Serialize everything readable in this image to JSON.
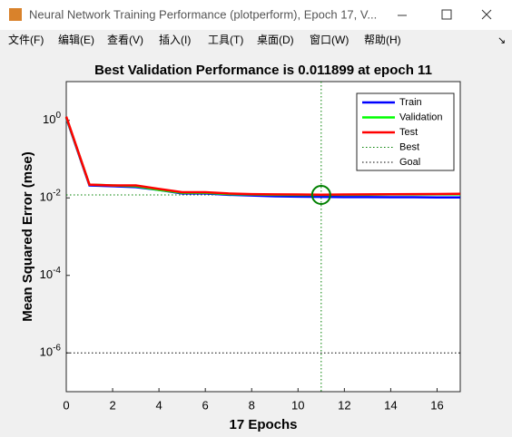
{
  "window": {
    "title": "Neural Network Training Performance (plotperform), Epoch 17, V...",
    "menu": [
      "文件(F)",
      "编辑(E)",
      "查看(V)",
      "插入(I)",
      "工具(T)",
      "桌面(D)",
      "窗口(W)",
      "帮助(H)"
    ]
  },
  "chart_data": {
    "type": "line",
    "title": "Best Validation Performance is 0.011899 at epoch 11",
    "x_label": "17 Epochs",
    "y_label": "Mean Squared Error  (mse)",
    "x": [
      0,
      1,
      2,
      3,
      4,
      5,
      6,
      7,
      8,
      9,
      10,
      11,
      12,
      13,
      14,
      15,
      16,
      17
    ],
    "series": [
      {
        "name": "Train",
        "color": "#0000ff",
        "values": [
          1.15,
          0.021,
          0.02,
          0.019,
          0.016,
          0.013,
          0.013,
          0.012,
          0.0115,
          0.011,
          0.0108,
          0.0106,
          0.0105,
          0.0105,
          0.0104,
          0.0104,
          0.0103,
          0.0103
        ]
      },
      {
        "name": "Validation",
        "color": "#00ff00",
        "values": [
          1.2,
          0.022,
          0.021,
          0.02,
          0.016,
          0.0135,
          0.0135,
          0.0125,
          0.0122,
          0.012,
          0.0119,
          0.011899,
          0.012,
          0.0121,
          0.0122,
          0.0122,
          0.0123,
          0.0123
        ]
      },
      {
        "name": "Test",
        "color": "#ff0000",
        "values": [
          1.25,
          0.022,
          0.021,
          0.021,
          0.017,
          0.014,
          0.014,
          0.013,
          0.0125,
          0.0123,
          0.0122,
          0.0121,
          0.0122,
          0.0123,
          0.0124,
          0.0125,
          0.0126,
          0.0127
        ]
      }
    ],
    "best": {
      "name": "Best",
      "x": 11,
      "value": 0.011899,
      "color": "#008000"
    },
    "goal": {
      "name": "Goal",
      "value": 1e-06,
      "color": "#000000"
    },
    "xlim": [
      0,
      17
    ],
    "xticks": [
      0,
      2,
      4,
      6,
      8,
      10,
      12,
      14,
      16
    ],
    "ylim": [
      1e-07,
      10
    ],
    "log_y": true,
    "yticks": [
      {
        "value": 1e-06,
        "label": "10^-6"
      },
      {
        "value": 0.0001,
        "label": "10^-4"
      },
      {
        "value": 0.01,
        "label": "10^-2"
      },
      {
        "value": 1,
        "label": "10^0"
      }
    ],
    "legend": "top-right"
  }
}
